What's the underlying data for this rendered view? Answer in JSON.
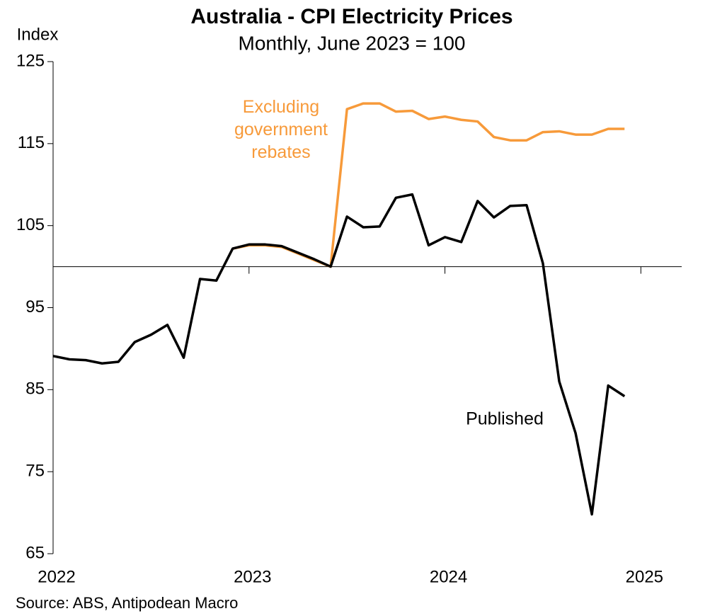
{
  "chart_data": {
    "type": "line",
    "title": "Australia - CPI Electricity Prices",
    "subtitle": "Monthly, June 2023 = 100",
    "y_label": "Index",
    "source": "Source: ABS, Antipodean Macro",
    "x": [
      0,
      1,
      2,
      3,
      4,
      5,
      6,
      7,
      8,
      9,
      10,
      11,
      12,
      13,
      14,
      15,
      16,
      17,
      18,
      19,
      20,
      21,
      22,
      23,
      24,
      25,
      26,
      27,
      28,
      29,
      30,
      31,
      32,
      33,
      34,
      35
    ],
    "xlim": [
      0,
      38.5
    ],
    "xticks": [
      {
        "value": 0,
        "label": "2022"
      },
      {
        "value": 12,
        "label": "2023"
      },
      {
        "value": 24,
        "label": "2024"
      },
      {
        "value": 36,
        "label": "2025"
      }
    ],
    "ylim": [
      65,
      125
    ],
    "yticks": [
      65,
      75,
      85,
      95,
      105,
      115,
      125
    ],
    "reference_line": 100,
    "series": [
      {
        "name": "Excluding government rebates",
        "color": "#f79a3a",
        "values": [
          null,
          null,
          null,
          null,
          null,
          null,
          null,
          null,
          null,
          null,
          null,
          102.2,
          102.6,
          102.6,
          102.4,
          101.6,
          100.8,
          100.0,
          119.2,
          119.9,
          119.9,
          118.9,
          119.0,
          118.0,
          118.3,
          117.9,
          117.7,
          115.8,
          115.4,
          115.4,
          116.4,
          116.5,
          116.1,
          116.1,
          116.8,
          116.8
        ]
      },
      {
        "name": "Published",
        "color": "#000000",
        "values": [
          89.1,
          88.7,
          88.6,
          88.2,
          88.4,
          90.8,
          91.7,
          92.9,
          88.9,
          98.5,
          98.3,
          102.2,
          102.7,
          102.7,
          102.5,
          101.7,
          100.9,
          100.0,
          106.1,
          104.8,
          104.9,
          108.4,
          108.8,
          102.6,
          103.6,
          103.0,
          108.0,
          106.0,
          107.4,
          107.5,
          100.4,
          86.0,
          79.7,
          69.8,
          85.5,
          84.2
        ]
      }
    ]
  }
}
